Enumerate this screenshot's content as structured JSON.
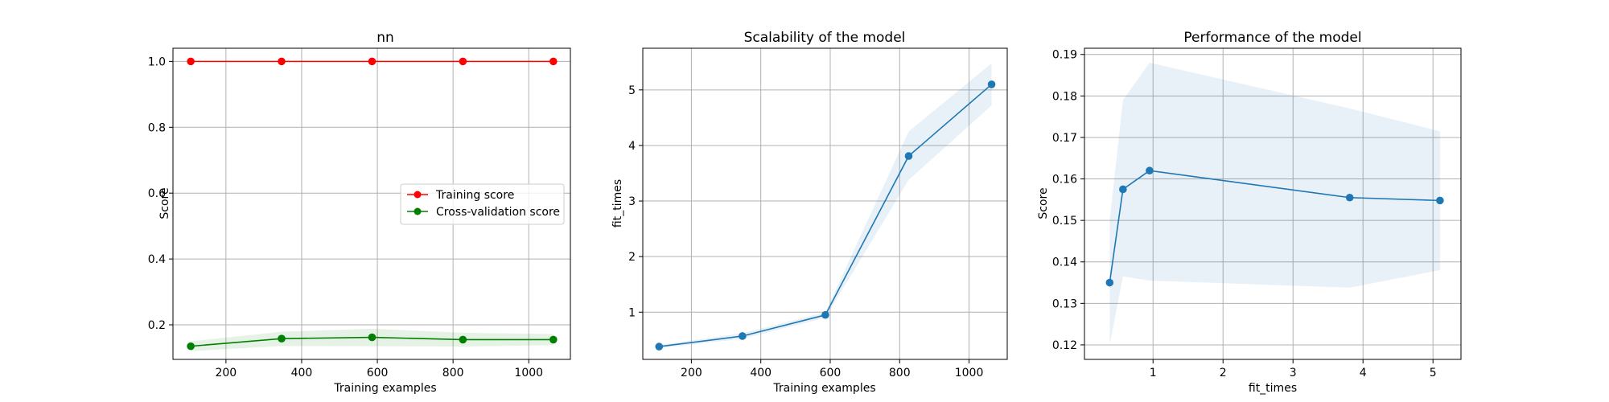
{
  "chart_data": [
    {
      "type": "line",
      "title": "nn",
      "xlabel": "Training examples",
      "ylabel": "Score",
      "xlim": [
        60,
        1110
      ],
      "ylim": [
        0.095,
        1.04
      ],
      "xticks": [
        200,
        400,
        600,
        800,
        1000
      ],
      "yticks": [
        0.2,
        0.4,
        0.6,
        0.8,
        1.0
      ],
      "xtick_labels": [
        "200",
        "400",
        "600",
        "800",
        "1000"
      ],
      "ytick_labels": [
        "0.2",
        "0.4",
        "0.6",
        "0.8",
        "1.0"
      ],
      "grid": true,
      "legend": "center-right",
      "series": [
        {
          "name": "Training score",
          "color": "#ff0000",
          "marker": "circle",
          "x": [
            107,
            347,
            586,
            826,
            1065
          ],
          "y": [
            1.0,
            1.0,
            1.0,
            1.0,
            1.0
          ],
          "band_lower": [
            1.0,
            1.0,
            1.0,
            1.0,
            1.0
          ],
          "band_upper": [
            1.0,
            1.0,
            1.0,
            1.0,
            1.0
          ]
        },
        {
          "name": "Cross-validation score",
          "color": "#008000",
          "marker": "circle",
          "x": [
            107,
            347,
            586,
            826,
            1065
          ],
          "y": [
            0.135,
            0.158,
            0.162,
            0.155,
            0.155
          ],
          "band_lower": [
            0.12,
            0.136,
            0.135,
            0.134,
            0.138
          ],
          "band_upper": [
            0.15,
            0.179,
            0.188,
            0.176,
            0.172
          ]
        }
      ]
    },
    {
      "type": "line",
      "title": "Scalability of the model",
      "xlabel": "Training examples",
      "ylabel": "fit_times",
      "xlim": [
        60,
        1110
      ],
      "ylim": [
        0.15,
        5.75
      ],
      "xticks": [
        200,
        400,
        600,
        800,
        1000
      ],
      "yticks": [
        1,
        2,
        3,
        4,
        5
      ],
      "xtick_labels": [
        "200",
        "400",
        "600",
        "800",
        "1000"
      ],
      "ytick_labels": [
        "1",
        "2",
        "3",
        "4",
        "5"
      ],
      "grid": true,
      "series": [
        {
          "color": "#1f77b4",
          "marker": "circle",
          "x": [
            107,
            347,
            586,
            826,
            1065
          ],
          "y": [
            0.38,
            0.57,
            0.95,
            3.81,
            5.1
          ],
          "band_lower": [
            0.35,
            0.52,
            0.9,
            3.38,
            4.72
          ],
          "band_upper": [
            0.41,
            0.62,
            1.0,
            4.25,
            5.48
          ]
        }
      ]
    },
    {
      "type": "line",
      "title": "Performance of the model",
      "xlabel": "fit_times",
      "ylabel": "Score",
      "xlim": [
        0.02,
        5.4
      ],
      "ylim": [
        0.1165,
        0.1915
      ],
      "xticks": [
        1,
        2,
        3,
        4,
        5
      ],
      "yticks": [
        0.12,
        0.13,
        0.14,
        0.15,
        0.16,
        0.17,
        0.18,
        0.19
      ],
      "xtick_labels": [
        "1",
        "2",
        "3",
        "4",
        "5"
      ],
      "ytick_labels": [
        "0.12",
        "0.13",
        "0.14",
        "0.15",
        "0.16",
        "0.17",
        "0.18",
        "0.19"
      ],
      "grid": true,
      "series": [
        {
          "color": "#1f77b4",
          "marker": "circle",
          "x": [
            0.38,
            0.57,
            0.95,
            3.81,
            5.1
          ],
          "y": [
            0.135,
            0.1575,
            0.162,
            0.1555,
            0.1548
          ],
          "band_lower": [
            0.12,
            0.1365,
            0.1355,
            0.1338,
            0.138
          ],
          "band_upper": [
            0.15,
            0.179,
            0.188,
            0.177,
            0.1715
          ]
        }
      ]
    }
  ]
}
